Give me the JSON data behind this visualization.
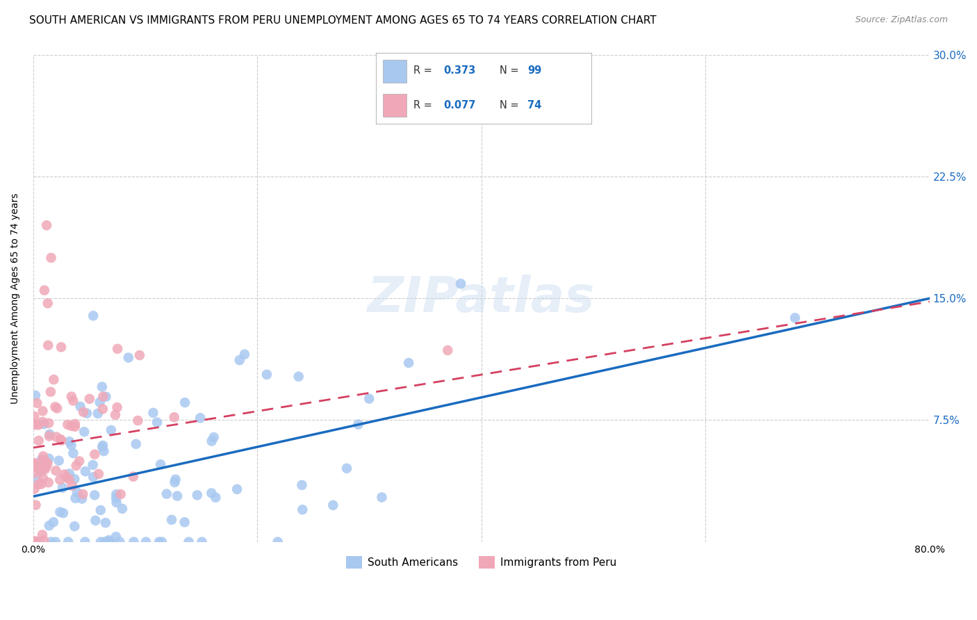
{
  "title": "SOUTH AMERICAN VS IMMIGRANTS FROM PERU UNEMPLOYMENT AMONG AGES 65 TO 74 YEARS CORRELATION CHART",
  "source": "Source: ZipAtlas.com",
  "ylabel": "Unemployment Among Ages 65 to 74 years",
  "yticks": [
    "",
    "7.5%",
    "15.0%",
    "22.5%",
    "30.0%"
  ],
  "ytick_vals": [
    0.0,
    0.075,
    0.15,
    0.225,
    0.3
  ],
  "xlim": [
    0.0,
    0.8
  ],
  "ylim": [
    0.0,
    0.3
  ],
  "series1_color": "#a8c8f0",
  "series2_color": "#f0a8b8",
  "line1_color": "#1a6bbf",
  "line2_color": "#d44060",
  "R1": 0.373,
  "N1": 99,
  "R2": 0.077,
  "N2": 74,
  "legend_label1": "South Americans",
  "legend_label2": "Immigrants from Peru",
  "watermark": "ZIPatlas",
  "background_color": "#ffffff",
  "grid_color": "#cccccc",
  "title_fontsize": 11,
  "axis_label_fontsize": 10,
  "tick_fontsize": 10,
  "line1_x0": 0.0,
  "line1_y0": 0.028,
  "line1_x1": 0.8,
  "line1_y1": 0.15,
  "line2_x0": 0.0,
  "line2_y0": 0.058,
  "line2_x1": 0.8,
  "line2_y1": 0.148
}
